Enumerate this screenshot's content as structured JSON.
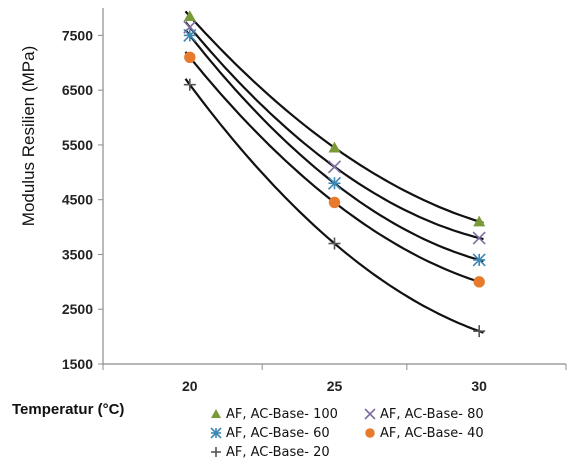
{
  "chart_data": {
    "type": "scatter",
    "xlabel": "Temperatur (°C)",
    "ylabel": "Modulus Resilien (MPa)",
    "x_ticks": [
      "20",
      "25",
      "30"
    ],
    "y_ticks": [
      "1500",
      "2500",
      "3500",
      "4500",
      "5500",
      "6500",
      "7500"
    ],
    "xlim": [
      17,
      33
    ],
    "ylim": [
      1500,
      8000
    ],
    "grid": false,
    "trendline": "power (black curve per series)",
    "legend_position": "bottom",
    "series": [
      {
        "name": "AF, AC-Base- 100",
        "marker": "triangle",
        "color": "#7a9a3a",
        "x": [
          20,
          25,
          30
        ],
        "y": [
          7850,
          5450,
          4100
        ]
      },
      {
        "name": "AF, AC-Base- 80",
        "marker": "x",
        "color": "#7f6fa0",
        "x": [
          20,
          25,
          30
        ],
        "y": [
          7650,
          5100,
          3800
        ]
      },
      {
        "name": "AF, AC-Base- 60",
        "marker": "star",
        "color": "#3d87b3",
        "x": [
          20,
          25,
          30
        ],
        "y": [
          7500,
          4800,
          3400
        ]
      },
      {
        "name": "AF, AC-Base- 40",
        "marker": "circle",
        "color": "#e87a2e",
        "x": [
          20,
          25,
          30
        ],
        "y": [
          7100,
          4450,
          3000
        ]
      },
      {
        "name": "AF, AC-Base- 20",
        "marker": "plus",
        "color": "#555555",
        "x": [
          20,
          25,
          30
        ],
        "y": [
          6600,
          3700,
          2100
        ]
      }
    ]
  }
}
